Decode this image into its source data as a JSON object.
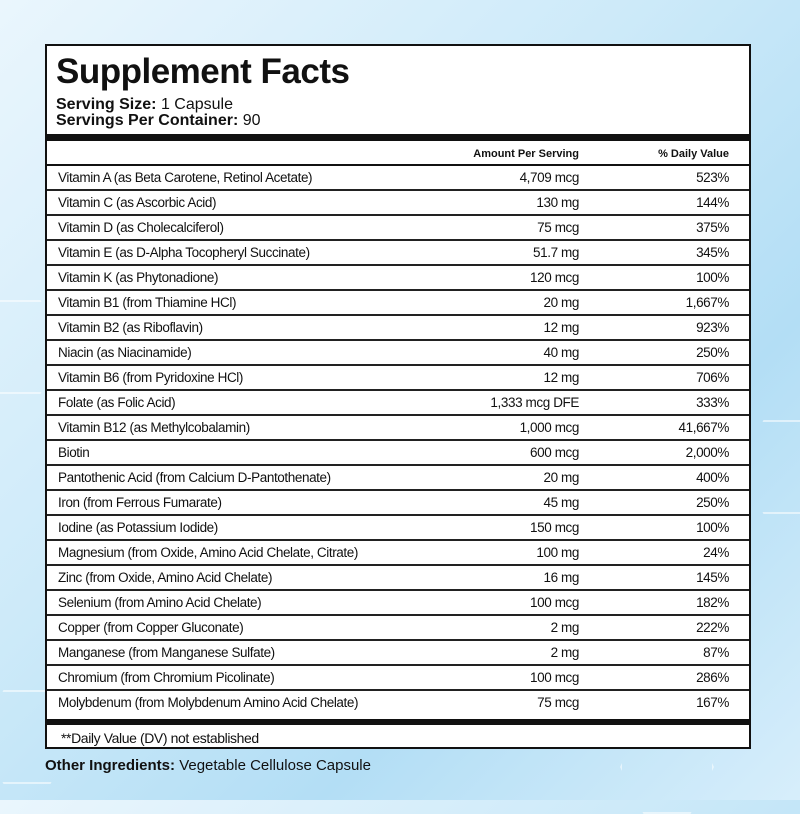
{
  "title": "Supplement Facts",
  "serving_size": {
    "label": "Serving Size:",
    "value": "1 Capsule"
  },
  "servings_per_container": {
    "label": "Servings Per Container:",
    "value": "90"
  },
  "columns": {
    "amount": "Amount Per Serving",
    "dv": "% Daily Value"
  },
  "rows": [
    {
      "name": "Vitamin A (as Beta Carotene,  Retinol Acetate)",
      "amount": "4,709 mcg",
      "dv": "523%"
    },
    {
      "name": "Vitamin C (as Ascorbic Acid)",
      "amount": "130 mg",
      "dv": "144%"
    },
    {
      "name": "Vitamin D (as Cholecalciferol)",
      "amount": "75 mcg",
      "dv": "375%"
    },
    {
      "name": "Vitamin E (as D-Alpha Tocopheryl Succinate)",
      "amount": "51.7 mg",
      "dv": "345%"
    },
    {
      "name": "Vitamin K (as Phytonadione)",
      "amount": "120 mcg",
      "dv": "100%"
    },
    {
      "name": "Vitamin B1 (from Thiamine HCl)",
      "amount": "20 mg",
      "dv": "1,667%"
    },
    {
      "name": "Vitamin B2 (as Riboflavin)",
      "amount": "12 mg",
      "dv": "923%"
    },
    {
      "name": "Niacin (as Niacinamide)",
      "amount": "40 mg",
      "dv": "250%"
    },
    {
      "name": "Vitamin B6 (from Pyridoxine HCl)",
      "amount": "12 mg",
      "dv": "706%"
    },
    {
      "name": "Folate (as Folic Acid)",
      "amount": "1,333 mcg DFE",
      "dv": "333%"
    },
    {
      "name": "Vitamin B12 (as Methylcobalamin)",
      "amount": "1,000 mcg",
      "dv": "41,667%"
    },
    {
      "name": "Biotin",
      "amount": "600 mcg",
      "dv": "2,000%"
    },
    {
      "name": "Pantothenic Acid (from Calcium D-Pantothenate)",
      "amount": "20 mg",
      "dv": "400%"
    },
    {
      "name": "Iron (from Ferrous Fumarate)",
      "amount": "45 mg",
      "dv": "250%"
    },
    {
      "name": "Iodine (as Potassium Iodide)",
      "amount": "150 mcg",
      "dv": "100%"
    },
    {
      "name": "Magnesium (from Oxide, Amino Acid Chelate, Citrate)",
      "amount": "100 mg",
      "dv": "24%"
    },
    {
      "name": "Zinc (from Oxide, Amino Acid Chelate)",
      "amount": "16 mg",
      "dv": "145%"
    },
    {
      "name": "Selenium (from Amino Acid Chelate)",
      "amount": "100 mcg",
      "dv": "182%"
    },
    {
      "name": "Copper (from Copper Gluconate)",
      "amount": "2 mg",
      "dv": "222%"
    },
    {
      "name": "Manganese (from Manganese Sulfate)",
      "amount": "2 mg",
      "dv": "87%"
    },
    {
      "name": "Chromium (from Chromium Picolinate)",
      "amount": "100 mcg",
      "dv": "286%"
    },
    {
      "name": "Molybdenum (from Molybdenum Amino Acid Chelate)",
      "amount": "75 mcg",
      "dv": "167%"
    }
  ],
  "footnote": "**Daily Value (DV) not established",
  "other_ingredients": {
    "label": "Other Ingredients:",
    "value": "Vegetable Cellulose Capsule"
  }
}
